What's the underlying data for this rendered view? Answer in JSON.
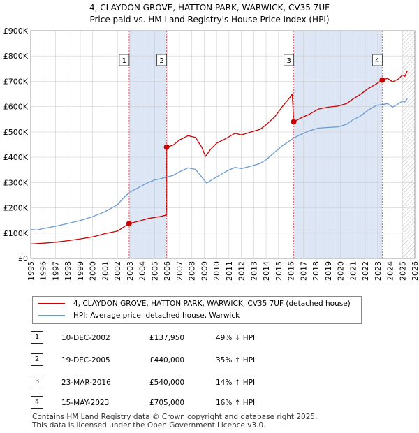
{
  "title_line1": "4, CLAYDON GROVE, HATTON PARK, WARWICK, CV35 7UF",
  "title_line2": "Price paid vs. HM Land Registry's House Price Index (HPI)",
  "colors": {
    "property": "#cc0000",
    "hpi": "#6b9bd2",
    "shade": "#dde6f5",
    "marker_line": "#dd5555",
    "grid": "#d0d0d0"
  },
  "legend": [
    {
      "label": "4, CLAYDON GROVE, HATTON PARK, WARWICK, CV35 7UF (detached house)"
    },
    {
      "label": "HPI: Average price, detached house, Warwick"
    }
  ],
  "transactions": [
    {
      "num": "1",
      "date": "10-DEC-2002",
      "price": "£137,950",
      "hpi": "49% ↓ HPI"
    },
    {
      "num": "2",
      "date": "19-DEC-2005",
      "price": "£440,000",
      "hpi": "35% ↑ HPI"
    },
    {
      "num": "3",
      "date": "23-MAR-2016",
      "price": "£540,000",
      "hpi": "14% ↑ HPI"
    },
    {
      "num": "4",
      "date": "15-MAY-2023",
      "price": "£705,000",
      "hpi": "16% ↑ HPI"
    }
  ],
  "footer_line1": "Contains HM Land Registry data © Crown copyright and database right 2025.",
  "footer_line2": "This data is licensed under the Open Government Licence v3.0.",
  "chart_data": {
    "type": "line",
    "title": "Price paid vs. HM Land Registry's House Price Index (HPI)",
    "xlim": [
      1995,
      2026
    ],
    "ylim": [
      0,
      900000
    ],
    "x_ticks": [
      1995,
      1996,
      1997,
      1998,
      1999,
      2000,
      2001,
      2002,
      2003,
      2004,
      2005,
      2006,
      2007,
      2008,
      2009,
      2010,
      2011,
      2012,
      2013,
      2014,
      2015,
      2016,
      2017,
      2018,
      2019,
      2020,
      2021,
      2022,
      2023,
      2024,
      2025,
      2026
    ],
    "y_ticks": [
      {
        "value": 0,
        "label": "£0"
      },
      {
        "value": 100000,
        "label": "£100K"
      },
      {
        "value": 200000,
        "label": "£200K"
      },
      {
        "value": 300000,
        "label": "£300K"
      },
      {
        "value": 400000,
        "label": "£400K"
      },
      {
        "value": 500000,
        "label": "£500K"
      },
      {
        "value": 600000,
        "label": "£600K"
      },
      {
        "value": 700000,
        "label": "£700K"
      },
      {
        "value": 800000,
        "label": "£800K"
      },
      {
        "value": 900000,
        "label": "£900K"
      }
    ],
    "shaded_periods": [
      [
        2002.94,
        2005.97
      ],
      [
        2016.23,
        2023.37
      ]
    ],
    "hatched_from": 2025.0,
    "sales": [
      {
        "label": "1",
        "x": 2002.94,
        "y": 137950
      },
      {
        "label": "2",
        "x": 2005.97,
        "y": 440000
      },
      {
        "label": "3",
        "x": 2016.23,
        "y": 540000
      },
      {
        "label": "4",
        "x": 2023.37,
        "y": 705000
      }
    ],
    "series": [
      {
        "name": "4, CLAYDON GROVE, HATTON PARK, WARWICK, CV35 7UF (detached house)",
        "color": "#cc0000",
        "points": [
          [
            1995.0,
            57000
          ],
          [
            1996.0,
            60000
          ],
          [
            1997.0,
            64000
          ],
          [
            1998.0,
            70000
          ],
          [
            1999.0,
            77000
          ],
          [
            2000.0,
            85000
          ],
          [
            2001.0,
            98000
          ],
          [
            2002.0,
            108000
          ],
          [
            2002.94,
            137950
          ],
          [
            2003.5,
            144000
          ],
          [
            2004.5,
            158000
          ],
          [
            2005.5,
            166000
          ],
          [
            2005.96,
            172000
          ],
          [
            2005.97,
            440000
          ],
          [
            2006.5,
            448000
          ],
          [
            2007.0,
            468000
          ],
          [
            2007.7,
            485000
          ],
          [
            2008.3,
            478000
          ],
          [
            2008.8,
            440000
          ],
          [
            2009.1,
            403000
          ],
          [
            2009.5,
            430000
          ],
          [
            2010.0,
            455000
          ],
          [
            2010.8,
            475000
          ],
          [
            2011.5,
            495000
          ],
          [
            2012.0,
            488000
          ],
          [
            2012.8,
            500000
          ],
          [
            2013.5,
            510000
          ],
          [
            2014.0,
            528000
          ],
          [
            2014.7,
            560000
          ],
          [
            2015.3,
            600000
          ],
          [
            2015.9,
            635000
          ],
          [
            2016.1,
            650000
          ],
          [
            2016.23,
            540000
          ],
          [
            2016.8,
            555000
          ],
          [
            2017.5,
            570000
          ],
          [
            2018.2,
            590000
          ],
          [
            2019.0,
            598000
          ],
          [
            2019.8,
            602000
          ],
          [
            2020.5,
            612000
          ],
          [
            2021.0,
            630000
          ],
          [
            2021.6,
            648000
          ],
          [
            2022.2,
            670000
          ],
          [
            2022.9,
            690000
          ],
          [
            2023.37,
            705000
          ],
          [
            2023.8,
            712000
          ],
          [
            2024.2,
            698000
          ],
          [
            2024.7,
            710000
          ],
          [
            2025.0,
            725000
          ],
          [
            2025.2,
            720000
          ],
          [
            2025.4,
            742000
          ]
        ]
      },
      {
        "name": "HPI: Average price, detached house, Warwick",
        "color": "#6b9bd2",
        "points": [
          [
            1995.0,
            114000
          ],
          [
            1995.5,
            112000
          ],
          [
            1996.0,
            118000
          ],
          [
            1997.0,
            127000
          ],
          [
            1998.0,
            138000
          ],
          [
            1999.0,
            150000
          ],
          [
            2000.0,
            165000
          ],
          [
            2001.0,
            185000
          ],
          [
            2002.0,
            212000
          ],
          [
            2002.5,
            240000
          ],
          [
            2003.0,
            262000
          ],
          [
            2003.5,
            275000
          ],
          [
            2004.0,
            288000
          ],
          [
            2004.5,
            300000
          ],
          [
            2005.0,
            310000
          ],
          [
            2005.5,
            315000
          ],
          [
            2006.0,
            322000
          ],
          [
            2006.5,
            328000
          ],
          [
            2007.0,
            342000
          ],
          [
            2007.7,
            358000
          ],
          [
            2008.3,
            352000
          ],
          [
            2008.8,
            322000
          ],
          [
            2009.2,
            298000
          ],
          [
            2009.6,
            310000
          ],
          [
            2010.0,
            322000
          ],
          [
            2010.8,
            345000
          ],
          [
            2011.5,
            360000
          ],
          [
            2012.0,
            355000
          ],
          [
            2012.8,
            365000
          ],
          [
            2013.5,
            375000
          ],
          [
            2014.0,
            390000
          ],
          [
            2014.7,
            420000
          ],
          [
            2015.3,
            445000
          ],
          [
            2015.9,
            465000
          ],
          [
            2016.3,
            478000
          ],
          [
            2016.8,
            490000
          ],
          [
            2017.5,
            505000
          ],
          [
            2018.2,
            515000
          ],
          [
            2019.0,
            518000
          ],
          [
            2019.8,
            520000
          ],
          [
            2020.5,
            530000
          ],
          [
            2021.0,
            548000
          ],
          [
            2021.6,
            562000
          ],
          [
            2022.2,
            585000
          ],
          [
            2022.9,
            605000
          ],
          [
            2023.37,
            608000
          ],
          [
            2023.8,
            612000
          ],
          [
            2024.2,
            598000
          ],
          [
            2024.7,
            612000
          ],
          [
            2025.0,
            622000
          ],
          [
            2025.2,
            618000
          ],
          [
            2025.4,
            632000
          ]
        ]
      }
    ]
  }
}
